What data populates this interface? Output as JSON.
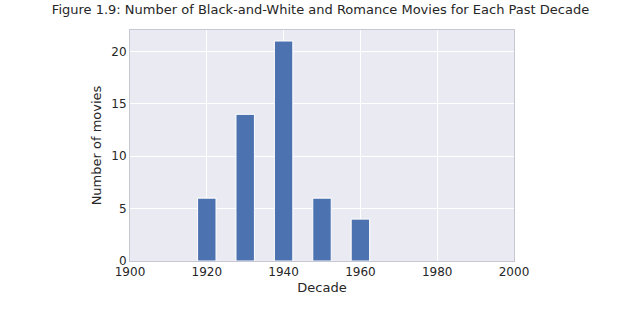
{
  "chart_data": {
    "type": "bar",
    "title": "Figure 1.9: Number of Black-and-White and Romance Movies for Each Past Decade",
    "x_label": "Decade",
    "y_label": "Number of movies",
    "x": [
      1920,
      1930,
      1940,
      1950,
      1960
    ],
    "values": [
      6,
      14,
      21,
      6,
      4
    ],
    "color": "#4c72b0",
    "xlim": [
      1900,
      2000
    ],
    "xticks": [
      1900,
      1920,
      1940,
      1960,
      1980,
      2000
    ],
    "ylim": [
      0,
      22.05
    ],
    "yticks": [
      0,
      5,
      10,
      15,
      20
    ],
    "grid": true
  }
}
